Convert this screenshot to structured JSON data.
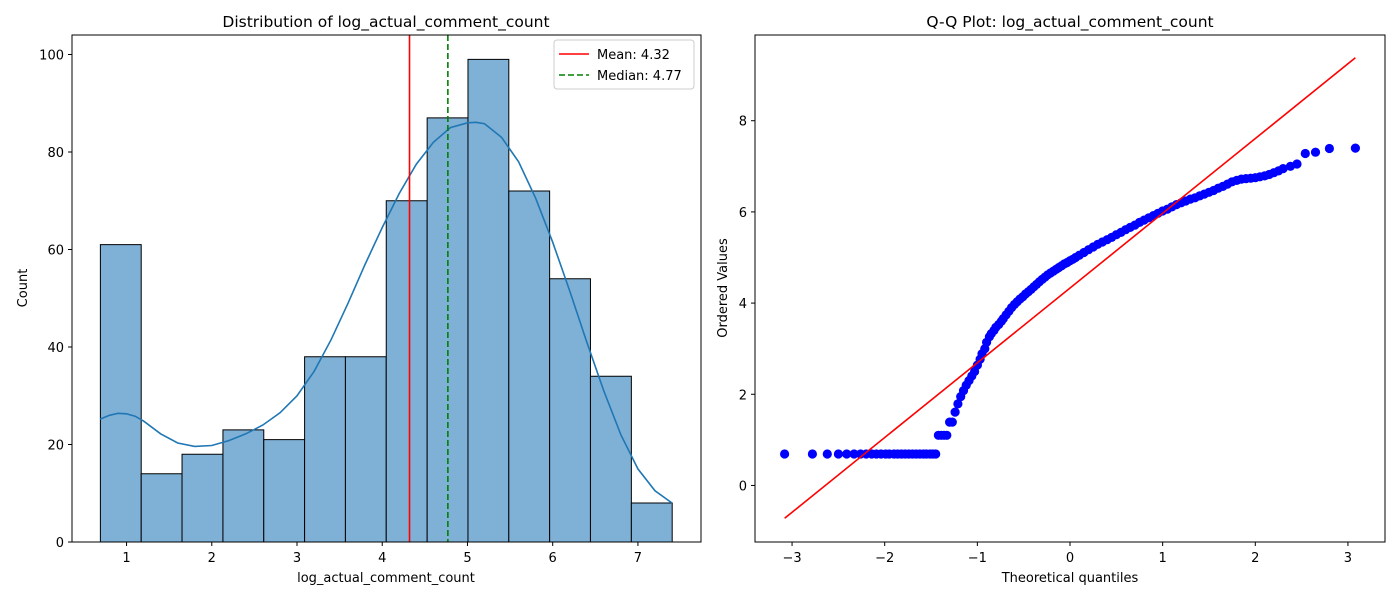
{
  "chart_data": [
    {
      "type": "histogram",
      "title": "Distribution of log_actual_comment_count",
      "xlabel": "log_actual_comment_count",
      "ylabel": "Count",
      "xlim": [
        0.36,
        7.74
      ],
      "ylim": [
        0,
        104
      ],
      "xticks": [
        1,
        2,
        3,
        4,
        5,
        6,
        7
      ],
      "yticks": [
        0,
        20,
        40,
        60,
        80,
        100
      ],
      "bin_edges": [
        0.693,
        1.172,
        1.651,
        2.131,
        2.61,
        3.089,
        3.568,
        4.047,
        4.527,
        5.006,
        5.485,
        5.964,
        6.443,
        6.923,
        7.402
      ],
      "counts": [
        61,
        14,
        18,
        23,
        21,
        38,
        38,
        70,
        87,
        99,
        72,
        54,
        34,
        8
      ],
      "bar_color": "#7fb0d6",
      "kde": {
        "color": "#1f77b4",
        "x": [
          0.69,
          0.8,
          0.9,
          1.0,
          1.1,
          1.2,
          1.4,
          1.6,
          1.8,
          2.0,
          2.2,
          2.4,
          2.6,
          2.8,
          3.0,
          3.2,
          3.4,
          3.6,
          3.8,
          4.0,
          4.2,
          4.4,
          4.6,
          4.8,
          5.0,
          5.1,
          5.2,
          5.4,
          5.6,
          5.8,
          6.0,
          6.2,
          6.4,
          6.6,
          6.8,
          7.0,
          7.2,
          7.4
        ],
        "y": [
          25.2,
          26.0,
          26.4,
          26.3,
          25.8,
          24.8,
          22.2,
          20.3,
          19.6,
          19.8,
          20.8,
          22.2,
          24.0,
          26.5,
          30.0,
          35.0,
          41.5,
          49.0,
          57.0,
          64.5,
          71.5,
          77.5,
          82.0,
          85.0,
          86.0,
          86.1,
          85.8,
          83.0,
          78.0,
          70.5,
          61.5,
          51.5,
          41.0,
          31.0,
          22.0,
          15.0,
          10.5,
          8.0
        ]
      },
      "lines": [
        {
          "label": "Mean: 4.32",
          "x": 4.32,
          "color": "#ff0000",
          "style": "solid"
        },
        {
          "label": "Median: 4.77",
          "x": 4.77,
          "color": "#008000",
          "style": "dashed"
        }
      ],
      "legend": "top-right"
    },
    {
      "type": "scatter",
      "title": "Q-Q Plot: log_actual_comment_count",
      "xlabel": "Theoretical quantiles",
      "ylabel": "Ordered Values",
      "xlim": [
        -3.4,
        3.4
      ],
      "ylim": [
        -1.24,
        9.88
      ],
      "xticks": [
        -3,
        -2,
        -1,
        0,
        1,
        2,
        3
      ],
      "yticks": [
        0,
        2,
        4,
        6,
        8
      ],
      "point_color": "#0000ff",
      "fit_line": {
        "x": [
          -3.08,
          3.08
        ],
        "y": [
          -0.72,
          9.38
        ],
        "color": "#ff0000"
      },
      "points": {
        "x": [
          -3.08,
          -2.78,
          -2.62,
          -2.5,
          -2.41,
          -2.33,
          -2.26,
          -2.2,
          -2.14,
          -2.09,
          -2.04,
          -1.99,
          -1.95,
          -1.9,
          -1.86,
          -1.82,
          -1.78,
          -1.74,
          -1.7,
          -1.66,
          -1.62,
          -1.58,
          -1.55,
          -1.51,
          -1.48,
          -1.45,
          -1.42,
          -1.39,
          -1.36,
          -1.33,
          -1.3,
          -1.27,
          -1.24,
          -1.21,
          -1.18,
          -1.15,
          -1.12,
          -1.09,
          -1.06,
          -1.03,
          -1.0,
          -0.97,
          -0.95,
          -0.92,
          -0.9,
          -0.87,
          -0.85,
          -0.82,
          -0.8,
          -0.77,
          -0.74,
          -0.72,
          -0.69,
          -0.66,
          -0.63,
          -0.6,
          -0.57,
          -0.54,
          -0.51,
          -0.48,
          -0.45,
          -0.42,
          -0.39,
          -0.36,
          -0.33,
          -0.3,
          -0.27,
          -0.24,
          -0.21,
          -0.18,
          -0.15,
          -0.12,
          -0.09,
          -0.06,
          -0.03,
          0.0,
          0.03,
          0.06,
          0.1,
          0.15,
          0.2,
          0.25,
          0.3,
          0.35,
          0.4,
          0.45,
          0.5,
          0.55,
          0.6,
          0.65,
          0.7,
          0.75,
          0.8,
          0.85,
          0.9,
          0.95,
          1.0,
          1.05,
          1.1,
          1.15,
          1.2,
          1.25,
          1.3,
          1.35,
          1.4,
          1.45,
          1.5,
          1.55,
          1.6,
          1.65,
          1.7,
          1.75,
          1.8,
          1.85,
          1.9,
          1.95,
          2.0,
          2.05,
          2.1,
          2.15,
          2.2,
          2.25,
          2.3,
          2.38,
          2.45,
          2.54,
          2.65,
          2.8,
          3.08
        ],
        "y": [
          0.69,
          0.69,
          0.69,
          0.69,
          0.69,
          0.69,
          0.69,
          0.69,
          0.69,
          0.69,
          0.69,
          0.69,
          0.69,
          0.69,
          0.69,
          0.69,
          0.69,
          0.69,
          0.69,
          0.69,
          0.69,
          0.69,
          0.69,
          0.69,
          0.69,
          0.69,
          1.1,
          1.1,
          1.1,
          1.1,
          1.39,
          1.39,
          1.61,
          1.79,
          1.95,
          2.08,
          2.2,
          2.3,
          2.4,
          2.5,
          2.64,
          2.77,
          2.89,
          3.0,
          3.14,
          3.26,
          3.33,
          3.4,
          3.47,
          3.53,
          3.6,
          3.66,
          3.74,
          3.82,
          3.9,
          3.97,
          4.03,
          4.09,
          4.14,
          4.2,
          4.25,
          4.3,
          4.36,
          4.41,
          4.47,
          4.52,
          4.57,
          4.62,
          4.66,
          4.7,
          4.74,
          4.78,
          4.82,
          4.86,
          4.89,
          4.93,
          4.96,
          5.0,
          5.05,
          5.11,
          5.17,
          5.23,
          5.29,
          5.34,
          5.39,
          5.44,
          5.5,
          5.55,
          5.61,
          5.66,
          5.71,
          5.77,
          5.82,
          5.87,
          5.92,
          5.97,
          6.02,
          6.06,
          6.11,
          6.16,
          6.2,
          6.24,
          6.28,
          6.31,
          6.35,
          6.39,
          6.43,
          6.47,
          6.52,
          6.56,
          6.61,
          6.66,
          6.69,
          6.72,
          6.73,
          6.74,
          6.75,
          6.77,
          6.79,
          6.82,
          6.86,
          6.9,
          6.95,
          7.0,
          7.05,
          7.28,
          7.31,
          7.39,
          7.4
        ]
      }
    }
  ]
}
